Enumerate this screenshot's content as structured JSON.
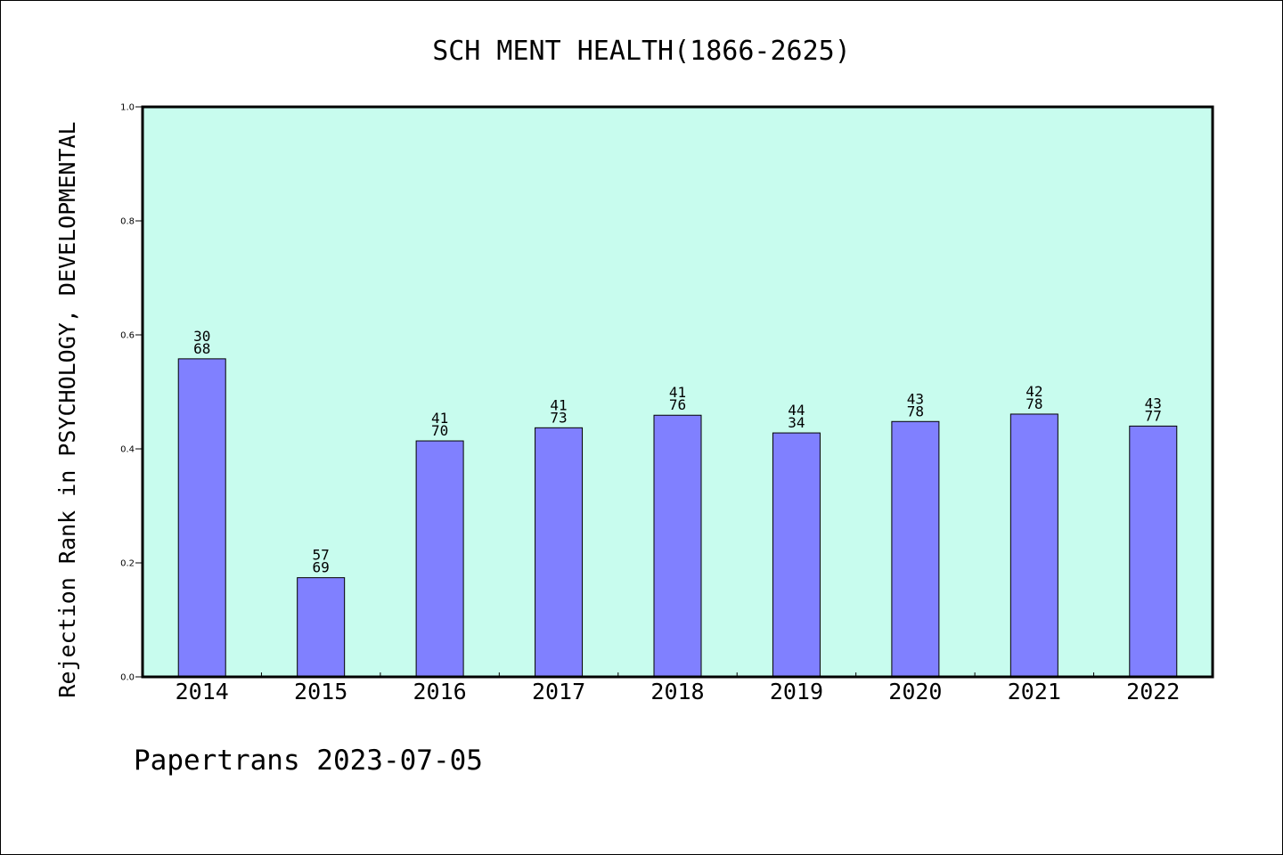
{
  "chart_data": {
    "type": "bar",
    "title": "SCH MENT HEALTH(1866-2625)",
    "ylabel": "Rejection Rank in PSYCHOLOGY, DEVELOPMENTAL",
    "xlabel": "",
    "ylim": [
      0,
      1.0
    ],
    "yticks": [
      "0.0",
      "0.2",
      "0.4",
      "0.6",
      "0.8",
      "1.0"
    ],
    "categories": [
      "2014",
      "2015",
      "2016",
      "2017",
      "2018",
      "2019",
      "2020",
      "2021",
      "2022"
    ],
    "values": [
      0.558,
      0.174,
      0.414,
      0.437,
      0.459,
      0.428,
      0.448,
      0.461,
      0.44
    ],
    "labels": [
      [
        "30",
        "68"
      ],
      [
        "57",
        "69"
      ],
      [
        "41",
        "70"
      ],
      [
        "41",
        "73"
      ],
      [
        "41",
        "76"
      ],
      [
        "44",
        "34"
      ],
      [
        "43",
        "78"
      ],
      [
        "42",
        "78"
      ],
      [
        "43",
        "77"
      ]
    ],
    "grid": false,
    "legend": "none"
  },
  "footer": {
    "text": "Papertrans 2023-07-05"
  },
  "colors": {
    "plot_background": "#c8fcee",
    "bar_fill": "#8080ff",
    "bar_stroke": "#000000",
    "axis": "#000000",
    "text": "#000000"
  }
}
